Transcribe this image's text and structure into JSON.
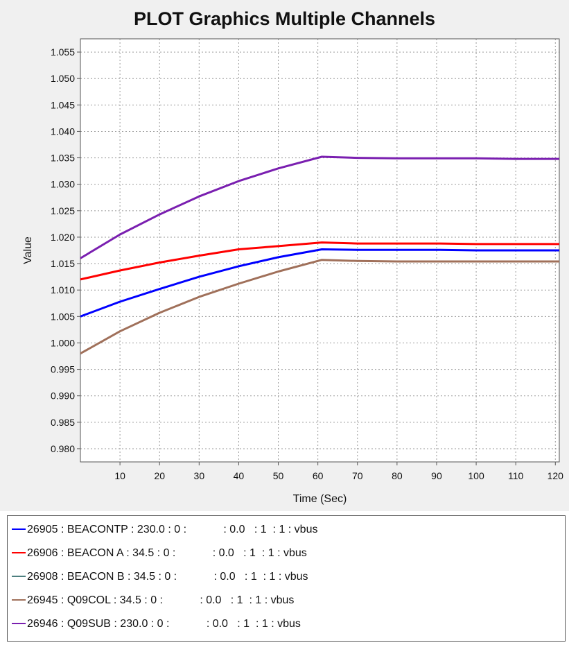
{
  "chart_data": {
    "type": "line",
    "title": "PLOT Graphics Multiple Channels",
    "xlabel": "Time (Sec)",
    "ylabel": "Value",
    "xlim": [
      0,
      121
    ],
    "ylim": [
      0.9775,
      1.0575
    ],
    "x_ticks": [
      10,
      20,
      30,
      40,
      50,
      60,
      70,
      80,
      90,
      100,
      110,
      120
    ],
    "y_ticks": [
      0.98,
      0.985,
      0.99,
      0.995,
      1.0,
      1.005,
      1.01,
      1.015,
      1.02,
      1.025,
      1.03,
      1.035,
      1.04,
      1.045,
      1.05,
      1.055
    ],
    "grid": true,
    "legend_position": "bottom",
    "series": [
      {
        "name": "26905 : BEACONTP : 230.0 : 0 :            : 0.0   : 1  : 1 : vbus",
        "color": "#0000ff",
        "x": [
          0,
          10,
          20,
          30,
          40,
          50,
          61,
          70,
          80,
          90,
          100,
          110,
          121
        ],
        "y": [
          1.005,
          1.0078,
          1.0102,
          1.0125,
          1.0145,
          1.0162,
          1.0177,
          1.0176,
          1.0176,
          1.0176,
          1.0175,
          1.0175,
          1.0175
        ]
      },
      {
        "name": "26906 : BEACON A : 34.5 : 0 :            : 0.0   : 1  : 1 : vbus",
        "color": "#ff0000",
        "x": [
          0,
          10,
          20,
          30,
          40,
          50,
          61,
          70,
          80,
          90,
          100,
          110,
          121
        ],
        "y": [
          1.012,
          1.0137,
          1.0152,
          1.0165,
          1.0177,
          1.0183,
          1.019,
          1.0188,
          1.0188,
          1.0188,
          1.0187,
          1.0187,
          1.0187
        ]
      },
      {
        "name": "26908 : BEACON B : 34.5 : 0 :            : 0.0   : 1  : 1 : vbus",
        "color": "#4d7f7f",
        "x": [],
        "y": []
      },
      {
        "name": "26945 : Q09COL : 34.5 : 0 :            : 0.0   : 1  : 1 : vbus",
        "color": "#a0705a",
        "x": [
          0,
          10,
          20,
          30,
          40,
          50,
          61,
          70,
          80,
          90,
          100,
          110,
          121
        ],
        "y": [
          0.998,
          1.0022,
          1.0057,
          1.0087,
          1.0112,
          1.0135,
          1.0157,
          1.0155,
          1.0154,
          1.0154,
          1.0154,
          1.0154,
          1.0154
        ]
      },
      {
        "name": "26946 : Q09SUB : 230.0 : 0 :            : 0.0   : 1  : 1 : vbus",
        "color": "#7a1fb0",
        "x": [
          0,
          10,
          20,
          30,
          40,
          50,
          61,
          70,
          80,
          90,
          100,
          110,
          121
        ],
        "y": [
          1.016,
          1.0205,
          1.0243,
          1.0277,
          1.0306,
          1.033,
          1.0352,
          1.035,
          1.0349,
          1.0349,
          1.0349,
          1.0348,
          1.0348
        ]
      }
    ]
  }
}
